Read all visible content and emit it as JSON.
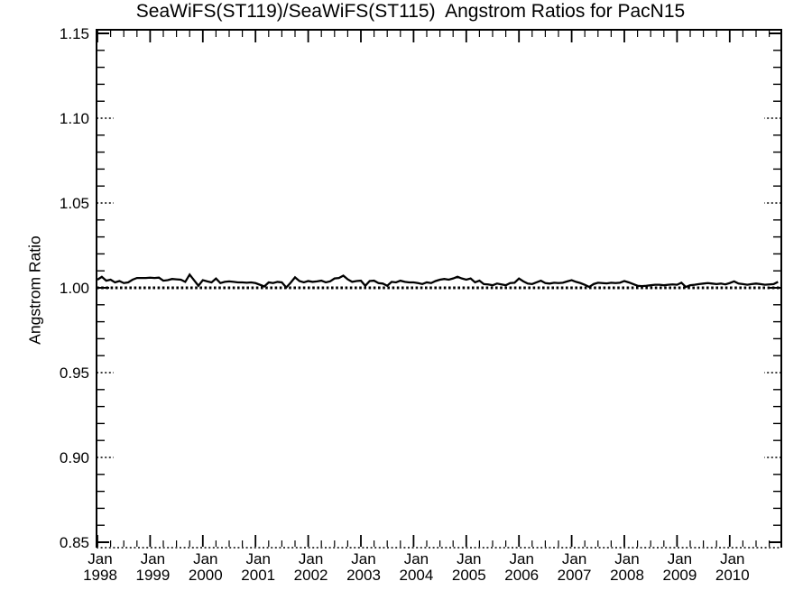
{
  "title": "SeaWiFS(ST119)/SeaWiFS(ST115)  Angstrom Ratios for PacN15",
  "chart_data": {
    "type": "line",
    "title": "SeaWiFS(ST119)/SeaWiFS(ST115)  Angstrom Ratios for PacN15",
    "xlabel": "",
    "ylabel": "Angstrom Ratio",
    "ylim": [
      0.85,
      1.15
    ],
    "x_range_years": [
      1998.0,
      2011.0
    ],
    "grid": "dotted stubs at major y ticks on left and right axis edges",
    "legend_position": "none",
    "colors": {
      "line": "#000000",
      "reference_line": "#000000",
      "background": "#ffffff",
      "axis": "#000000"
    },
    "yticks": [
      {
        "value": 0.85,
        "label": "0.85"
      },
      {
        "value": 0.9,
        "label": "0.90"
      },
      {
        "value": 0.95,
        "label": "0.95"
      },
      {
        "value": 1.0,
        "label": "1.00"
      },
      {
        "value": 1.05,
        "label": "1.05"
      },
      {
        "value": 1.1,
        "label": "1.10"
      },
      {
        "value": 1.15,
        "label": "1.15"
      }
    ],
    "y_minor_step": 0.01,
    "xticks": [
      {
        "month": "Jan",
        "year": "1998"
      },
      {
        "month": "Jan",
        "year": "1999"
      },
      {
        "month": "Jan",
        "year": "2000"
      },
      {
        "month": "Jan",
        "year": "2001"
      },
      {
        "month": "Jan",
        "year": "2002"
      },
      {
        "month": "Jan",
        "year": "2003"
      },
      {
        "month": "Jan",
        "year": "2004"
      },
      {
        "month": "Jan",
        "year": "2005"
      },
      {
        "month": "Jan",
        "year": "2006"
      },
      {
        "month": "Jan",
        "year": "2007"
      },
      {
        "month": "Jan",
        "year": "2008"
      },
      {
        "month": "Jan",
        "year": "2009"
      },
      {
        "month": "Jan",
        "year": "2010"
      }
    ],
    "x_minor_interval_months": 3,
    "reference_line": {
      "value": 1.0,
      "style": "thick-dotted"
    },
    "series": [
      {
        "name": "SeaWiFS(ST119)/SeaWiFS(ST115) monthly Angstrom ratio",
        "start_year": 1998,
        "points_per_year": 12,
        "values": [
          1.0048,
          1.0065,
          1.0042,
          1.0048,
          1.0032,
          1.004,
          1.0028,
          1.0032,
          1.0048,
          1.0058,
          1.0058,
          1.0058,
          1.006,
          1.0058,
          1.006,
          1.0042,
          1.0045,
          1.0052,
          1.005,
          1.0048,
          1.0035,
          1.0078,
          1.0045,
          1.0012,
          1.0045,
          1.0038,
          1.0032,
          1.0055,
          1.0028,
          1.0035,
          1.0038,
          1.0035,
          1.0032,
          1.0032,
          1.003,
          1.0032,
          1.0028,
          1.0018,
          1.0008,
          1.0032,
          1.0028,
          1.0035,
          1.0032,
          1.0002,
          1.003,
          1.0062,
          1.004,
          1.0032,
          1.004,
          1.0035,
          1.0038,
          1.0042,
          1.0032,
          1.0038,
          1.0055,
          1.0058,
          1.0072,
          1.005,
          1.0035,
          1.004,
          1.0042,
          1.0012,
          1.004,
          1.0042,
          1.0028,
          1.0025,
          1.0012,
          1.0035,
          1.0032,
          1.0042,
          1.0035,
          1.0032,
          1.0032,
          1.0028,
          1.0022,
          1.0032,
          1.0028,
          1.004,
          1.0048,
          1.0052,
          1.0048,
          1.0055,
          1.0065,
          1.0055,
          1.0048,
          1.0055,
          1.0032,
          1.0042,
          1.0022,
          1.002,
          1.0015,
          1.0025,
          1.002,
          1.0015,
          1.0028,
          1.003,
          1.0055,
          1.0038,
          1.0025,
          1.0022,
          1.0032,
          1.0042,
          1.0028,
          1.0025,
          1.003,
          1.0028,
          1.003,
          1.0038,
          1.0045,
          1.0035,
          1.0028,
          1.0018,
          1.0005,
          1.0022,
          1.003,
          1.0028,
          1.0026,
          1.003,
          1.0028,
          1.003,
          1.004,
          1.0032,
          1.0022,
          1.0012,
          1.001,
          1.0012,
          1.0015,
          1.0018,
          1.0018,
          1.0015,
          1.0018,
          1.002,
          1.0018,
          1.003,
          1.0005,
          1.0015,
          1.0018,
          1.0022,
          1.0025,
          1.0028,
          1.0025,
          1.0022,
          1.0025,
          1.002,
          1.0028,
          1.0038,
          1.0025,
          1.0022,
          1.0018,
          1.0022,
          1.0025,
          1.0022,
          1.0018,
          1.002,
          1.0022,
          1.0035
        ]
      }
    ]
  }
}
